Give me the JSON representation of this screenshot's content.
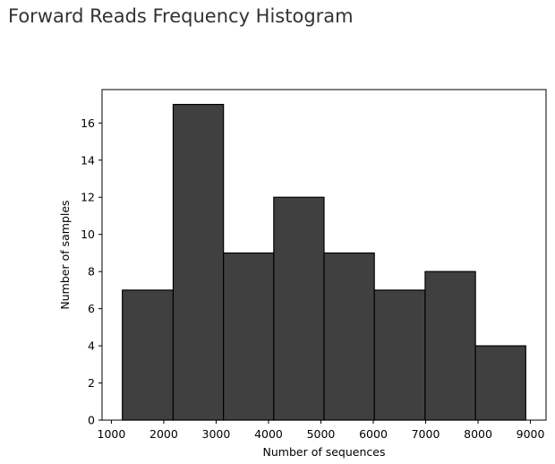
{
  "title": "Forward Reads Frequency Histogram",
  "chart_data": {
    "type": "bar",
    "title": "",
    "xlabel": "Number of sequences",
    "ylabel": "Number of samples",
    "bins": [
      {
        "start": 1210,
        "end": 2180,
        "count": 7
      },
      {
        "start": 2180,
        "end": 3140,
        "count": 17
      },
      {
        "start": 3140,
        "end": 4100,
        "count": 9
      },
      {
        "start": 4100,
        "end": 5060,
        "count": 12
      },
      {
        "start": 5060,
        "end": 6020,
        "count": 9
      },
      {
        "start": 6020,
        "end": 6990,
        "count": 7
      },
      {
        "start": 6990,
        "end": 7950,
        "count": 8
      },
      {
        "start": 7950,
        "end": 8910,
        "count": 4
      }
    ],
    "xlim": [
      822,
      9298
    ],
    "ylim": [
      0,
      17.8
    ],
    "xticks": [
      1000,
      2000,
      3000,
      4000,
      5000,
      6000,
      7000,
      8000,
      9000
    ],
    "yticks": [
      0,
      2,
      4,
      6,
      8,
      10,
      12,
      14,
      16
    ],
    "bar_color": "#404040",
    "edge_color": "#000000",
    "grid": false,
    "legend": "none"
  }
}
